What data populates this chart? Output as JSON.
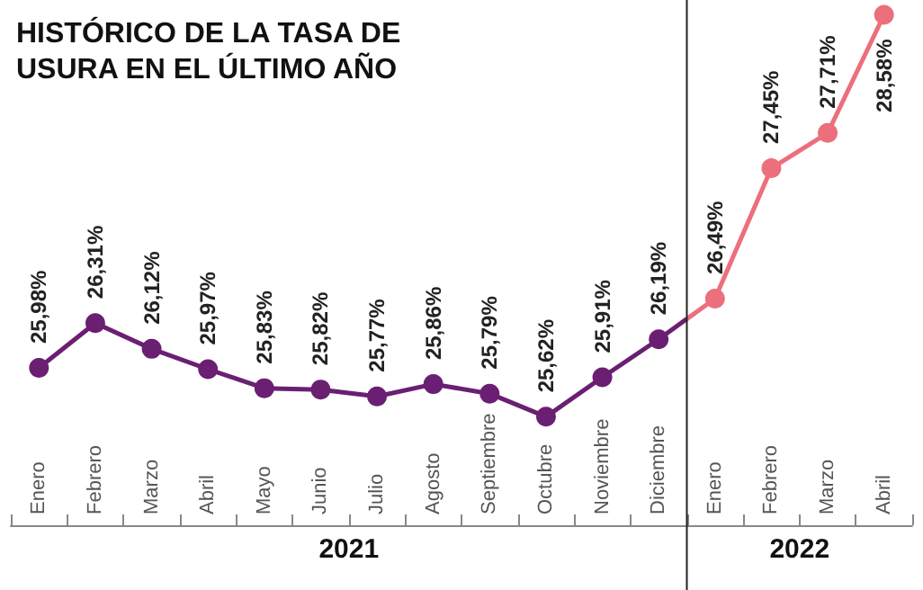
{
  "chart_data": {
    "type": "line",
    "title": "HISTÓRICO DE LA TASA DE\nUSURA EN EL ÚLTIMO AÑO",
    "categories": [
      "Enero",
      "Febrero",
      "Marzo",
      "Abril",
      "Mayo",
      "Junio",
      "Julio",
      "Agosto",
      "Septiembre",
      "Octubre",
      "Noviembre",
      "Diciembre",
      "Enero",
      "Febrero",
      "Marzo",
      "Abril"
    ],
    "series": [
      {
        "color": "#6a1f73",
        "values": [
          25.98,
          26.31,
          26.12,
          25.97,
          25.83,
          25.82,
          25.77,
          25.86,
          25.79,
          25.62,
          25.91,
          26.19,
          null,
          null,
          null,
          null
        ],
        "value_labels": [
          "25,98%",
          "26,31%",
          "26,12%",
          "25,97%",
          "25,83%",
          "25,82%",
          "25,77%",
          "25,86%",
          "25,79%",
          "25,62%",
          "25,91%",
          "26,19%",
          null,
          null,
          null,
          null
        ]
      },
      {
        "color": "#ec6f7c",
        "values": [
          null,
          null,
          null,
          null,
          null,
          null,
          null,
          null,
          null,
          null,
          null,
          null,
          26.49,
          27.45,
          27.71,
          28.58
        ],
        "value_labels": [
          null,
          null,
          null,
          null,
          null,
          null,
          null,
          null,
          null,
          null,
          null,
          null,
          "26,49%",
          "27,45%",
          "27,71%",
          "28,58%"
        ]
      }
    ],
    "annotations": [
      "2021",
      "2022"
    ],
    "marker": "circle"
  }
}
